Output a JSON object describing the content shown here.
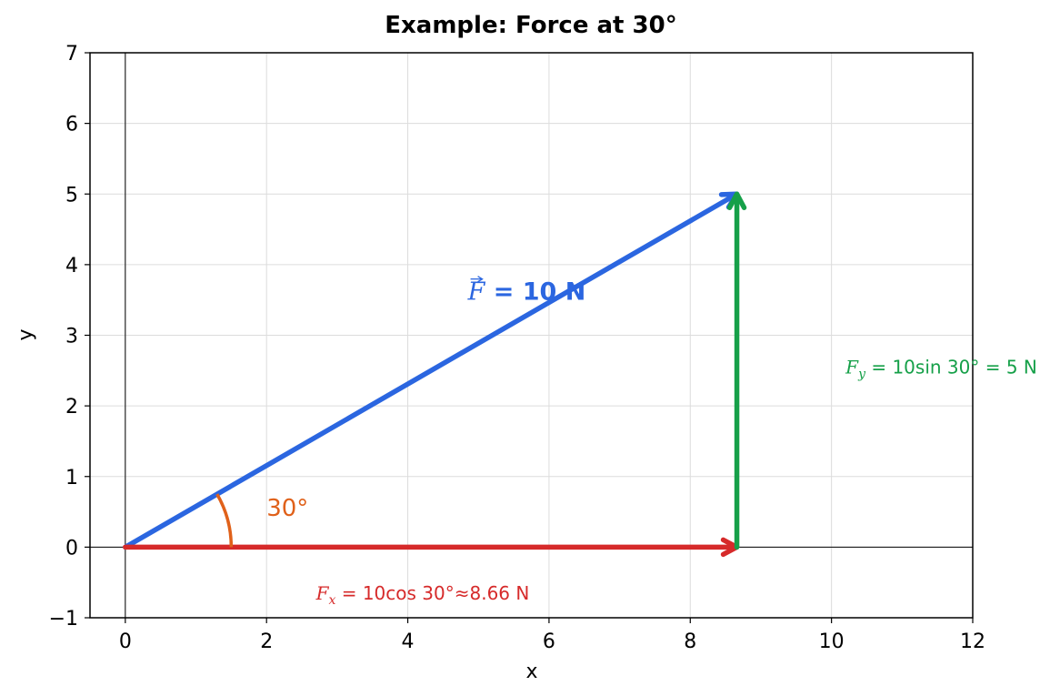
{
  "chart_data": {
    "type": "vector",
    "title": "Example: Force at 30°",
    "xlabel": "x",
    "ylabel": "y",
    "xlim": [
      -0.5,
      12
    ],
    "ylim": [
      -1,
      7
    ],
    "xticks": [
      0,
      2,
      4,
      6,
      8,
      10,
      12
    ],
    "yticks": [
      -1,
      0,
      1,
      2,
      3,
      4,
      5,
      6,
      7
    ],
    "grid": true,
    "zero_lines": true,
    "vectors": [
      {
        "name": "F",
        "from": [
          0,
          0
        ],
        "to": [
          8.66,
          5
        ],
        "color": "#2b66e0"
      },
      {
        "name": "Fx",
        "from": [
          0,
          0
        ],
        "to": [
          8.66,
          0
        ],
        "color": "#d62a2a"
      },
      {
        "name": "Fy",
        "from": [
          8.66,
          0
        ],
        "to": [
          8.66,
          5
        ],
        "color": "#16a049"
      }
    ],
    "angle_arc": {
      "center": [
        0,
        0
      ],
      "radius": 1.5,
      "start_deg": 0,
      "end_deg": 30,
      "color": "#e0611a"
    },
    "annotations": {
      "force": {
        "symbol": "F",
        "text": " = 10 N",
        "x": 4.85,
        "y": 3.5,
        "color": "#2b66e0"
      },
      "angle": {
        "text": "30°",
        "x": 2.0,
        "y": 0.6,
        "color": "#e0611a"
      },
      "fx": {
        "symbol": "F",
        "sub": "x",
        "text": " = 10cos 30°≈8.66 N",
        "x": 2.7,
        "y": -0.65,
        "color": "#d62a2a"
      },
      "fy": {
        "symbol": "F",
        "sub": "y",
        "text": " = 10sin 30° = 5 N",
        "x": 10.2,
        "y": 2.55,
        "color": "#16a049"
      }
    }
  }
}
